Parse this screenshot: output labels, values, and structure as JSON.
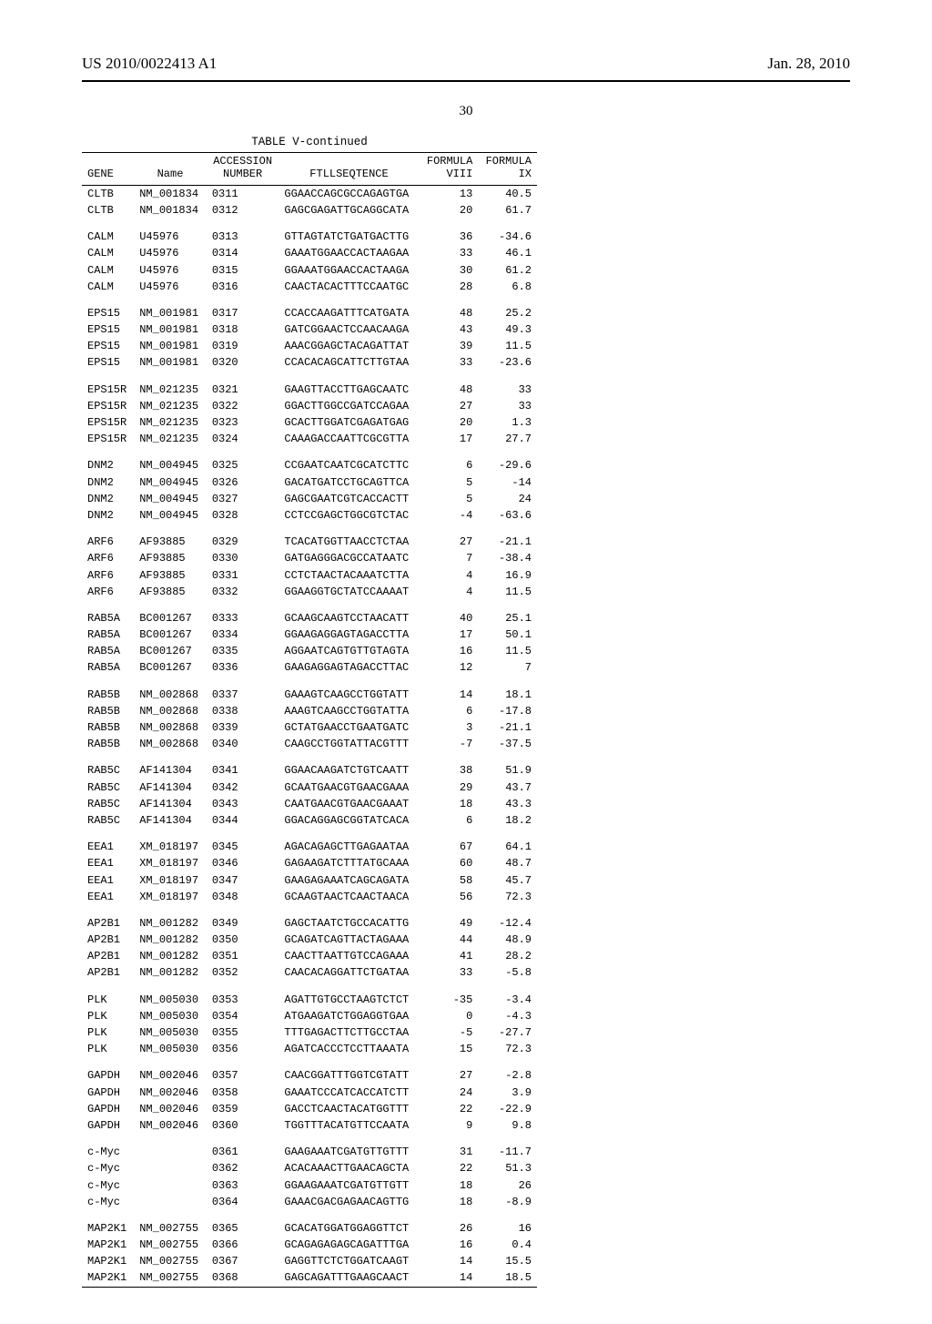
{
  "header": {
    "doc_number": "US 2010/0022413 A1",
    "date": "Jan. 28, 2010"
  },
  "page_number": "30",
  "table": {
    "title": "TABLE V-continued",
    "columns": {
      "gene": "GENE",
      "name": "Name",
      "accession": "ACCESSION\nNUMBER",
      "seq": "FTLLSEQTENCE",
      "f8": "FORMULA\nVIII",
      "f9": "FORMULA\nIX"
    },
    "groups": [
      [
        {
          "gene": "CLTB",
          "name": "NM_001834",
          "acc": "0311",
          "seq": "GGAACCAGCGCCAGAGTGA",
          "f8": "13",
          "f9": "40.5"
        },
        {
          "gene": "CLTB",
          "name": "NM_001834",
          "acc": "0312",
          "seq": "GAGCGAGATTGCAGGCATA",
          "f8": "20",
          "f9": "61.7"
        }
      ],
      [
        {
          "gene": "CALM",
          "name": "U45976",
          "acc": "0313",
          "seq": "GTTAGTATCTGATGACTTG",
          "f8": "36",
          "f9": "-34.6"
        },
        {
          "gene": "CALM",
          "name": "U45976",
          "acc": "0314",
          "seq": "GAAATGGAACCACTAAGAA",
          "f8": "33",
          "f9": "46.1"
        },
        {
          "gene": "CALM",
          "name": "U45976",
          "acc": "0315",
          "seq": "GGAAATGGAACCACTAAGA",
          "f8": "30",
          "f9": "61.2"
        },
        {
          "gene": "CALM",
          "name": "U45976",
          "acc": "0316",
          "seq": "CAACTACACTTTCCAATGC",
          "f8": "28",
          "f9": "6.8"
        }
      ],
      [
        {
          "gene": "EPS15",
          "name": "NM_001981",
          "acc": "0317",
          "seq": "CCACCAAGATTTCATGATA",
          "f8": "48",
          "f9": "25.2"
        },
        {
          "gene": "EPS15",
          "name": "NM_001981",
          "acc": "0318",
          "seq": "GATCGGAACTCCAACAAGA",
          "f8": "43",
          "f9": "49.3"
        },
        {
          "gene": "EPS15",
          "name": "NM_001981",
          "acc": "0319",
          "seq": "AAACGGAGCTACAGATTAT",
          "f8": "39",
          "f9": "11.5"
        },
        {
          "gene": "EPS15",
          "name": "NM_001981",
          "acc": "0320",
          "seq": "CCACACAGCATTCTTGTAA",
          "f8": "33",
          "f9": "-23.6"
        }
      ],
      [
        {
          "gene": "EPS15R",
          "name": "NM_021235",
          "acc": "0321",
          "seq": "GAAGTTACCTTGAGCAATC",
          "f8": "48",
          "f9": "33"
        },
        {
          "gene": "EPS15R",
          "name": "NM_021235",
          "acc": "0322",
          "seq": "GGACTTGGCCGATCCAGAA",
          "f8": "27",
          "f9": "33"
        },
        {
          "gene": "EPS15R",
          "name": "NM_021235",
          "acc": "0323",
          "seq": "GCACTTGGATCGAGATGAG",
          "f8": "20",
          "f9": "1.3"
        },
        {
          "gene": "EPS15R",
          "name": "NM_021235",
          "acc": "0324",
          "seq": "CAAAGACCAATTCGCGTTA",
          "f8": "17",
          "f9": "27.7"
        }
      ],
      [
        {
          "gene": "DNM2",
          "name": "NM_004945",
          "acc": "0325",
          "seq": "CCGAATCAATCGCATCTTC",
          "f8": "6",
          "f9": "-29.6"
        },
        {
          "gene": "DNM2",
          "name": "NM_004945",
          "acc": "0326",
          "seq": "GACATGATCCTGCAGTTCA",
          "f8": "5",
          "f9": "-14"
        },
        {
          "gene": "DNM2",
          "name": "NM_004945",
          "acc": "0327",
          "seq": "GAGCGAATCGTCACCACTT",
          "f8": "5",
          "f9": "24"
        },
        {
          "gene": "DNM2",
          "name": "NM_004945",
          "acc": "0328",
          "seq": "CCTCCGAGCTGGCGTCTAC",
          "f8": "-4",
          "f9": "-63.6"
        }
      ],
      [
        {
          "gene": "ARF6",
          "name": "AF93885",
          "acc": "0329",
          "seq": "TCACATGGTTAACCTCTAA",
          "f8": "27",
          "f9": "-21.1"
        },
        {
          "gene": "ARF6",
          "name": "AF93885",
          "acc": "0330",
          "seq": "GATGAGGGACGCCATAATC",
          "f8": "7",
          "f9": "-38.4"
        },
        {
          "gene": "ARF6",
          "name": "AF93885",
          "acc": "0331",
          "seq": "CCTCTAACTACAAATCTTA",
          "f8": "4",
          "f9": "16.9"
        },
        {
          "gene": "ARF6",
          "name": "AF93885",
          "acc": "0332",
          "seq": "GGAAGGTGCTATCCAAAAT",
          "f8": "4",
          "f9": "11.5"
        }
      ],
      [
        {
          "gene": "RAB5A",
          "name": "BC001267",
          "acc": "0333",
          "seq": "GCAAGCAAGTCCTAACATT",
          "f8": "40",
          "f9": "25.1"
        },
        {
          "gene": "RAB5A",
          "name": "BC001267",
          "acc": "0334",
          "seq": "GGAAGAGGAGTAGACCTTA",
          "f8": "17",
          "f9": "50.1"
        },
        {
          "gene": "RAB5A",
          "name": "BC001267",
          "acc": "0335",
          "seq": "AGGAATCAGTGTTGTAGTA",
          "f8": "16",
          "f9": "11.5"
        },
        {
          "gene": "RAB5A",
          "name": "BC001267",
          "acc": "0336",
          "seq": "GAAGAGGAGTAGACCTTAC",
          "f8": "12",
          "f9": "7"
        }
      ],
      [
        {
          "gene": "RAB5B",
          "name": "NM_002868",
          "acc": "0337",
          "seq": "GAAAGTCAAGCCTGGTATT",
          "f8": "14",
          "f9": "18.1"
        },
        {
          "gene": "RAB5B",
          "name": "NM_002868",
          "acc": "0338",
          "seq": "AAAGTCAAGCCTGGTATTA",
          "f8": "6",
          "f9": "-17.8"
        },
        {
          "gene": "RAB5B",
          "name": "NM_002868",
          "acc": "0339",
          "seq": "GCTATGAACCTGAATGATC",
          "f8": "3",
          "f9": "-21.1"
        },
        {
          "gene": "RAB5B",
          "name": "NM_002868",
          "acc": "0340",
          "seq": "CAAGCCTGGTATTACGTTT",
          "f8": "-7",
          "f9": "-37.5"
        }
      ],
      [
        {
          "gene": "RAB5C",
          "name": "AF141304",
          "acc": "0341",
          "seq": "GGAACAAGATCTGTCAATT",
          "f8": "38",
          "f9": "51.9"
        },
        {
          "gene": "RAB5C",
          "name": "AF141304",
          "acc": "0342",
          "seq": "GCAATGAACGTGAACGAAA",
          "f8": "29",
          "f9": "43.7"
        },
        {
          "gene": "RAB5C",
          "name": "AF141304",
          "acc": "0343",
          "seq": "CAATGAACGTGAACGAAAT",
          "f8": "18",
          "f9": "43.3"
        },
        {
          "gene": "RAB5C",
          "name": "AF141304",
          "acc": "0344",
          "seq": "GGACAGGAGCGGTATCACA",
          "f8": "6",
          "f9": "18.2"
        }
      ],
      [
        {
          "gene": "EEA1",
          "name": "XM_018197",
          "acc": "0345",
          "seq": "AGACAGAGCTTGAGAATAA",
          "f8": "67",
          "f9": "64.1"
        },
        {
          "gene": "EEA1",
          "name": "XM_018197",
          "acc": "0346",
          "seq": "GAGAAGATCTTTATGCAAA",
          "f8": "60",
          "f9": "48.7"
        },
        {
          "gene": "EEA1",
          "name": "XM_018197",
          "acc": "0347",
          "seq": "GAAGAGAAATCAGCAGATA",
          "f8": "58",
          "f9": "45.7"
        },
        {
          "gene": "EEA1",
          "name": "XM_018197",
          "acc": "0348",
          "seq": "GCAAGTAACTCAACTAACA",
          "f8": "56",
          "f9": "72.3"
        }
      ],
      [
        {
          "gene": "AP2B1",
          "name": "NM_001282",
          "acc": "0349",
          "seq": "GAGCTAATCTGCCACATTG",
          "f8": "49",
          "f9": "-12.4"
        },
        {
          "gene": "AP2B1",
          "name": "NM_001282",
          "acc": "0350",
          "seq": "GCAGATCAGTTACTAGAAA",
          "f8": "44",
          "f9": "48.9"
        },
        {
          "gene": "AP2B1",
          "name": "NM_001282",
          "acc": "0351",
          "seq": "CAACTTAATTGTCCAGAAA",
          "f8": "41",
          "f9": "28.2"
        },
        {
          "gene": "AP2B1",
          "name": "NM_001282",
          "acc": "0352",
          "seq": "CAACACAGGATTCTGATAA",
          "f8": "33",
          "f9": "-5.8"
        }
      ],
      [
        {
          "gene": "PLK",
          "name": "NM_005030",
          "acc": "0353",
          "seq": "AGATTGTGCCTAAGTCTCT",
          "f8": "-35",
          "f9": "-3.4"
        },
        {
          "gene": "PLK",
          "name": "NM_005030",
          "acc": "0354",
          "seq": "ATGAAGATCTGGAGGTGAA",
          "f8": "0",
          "f9": "-4.3"
        },
        {
          "gene": "PLK",
          "name": "NM_005030",
          "acc": "0355",
          "seq": "TTTGAGACTTCTTGCCTAA",
          "f8": "-5",
          "f9": "-27.7"
        },
        {
          "gene": "PLK",
          "name": "NM_005030",
          "acc": "0356",
          "seq": "AGATCACCCTCCTTAAATA",
          "f8": "15",
          "f9": "72.3"
        }
      ],
      [
        {
          "gene": "GAPDH",
          "name": "NM_002046",
          "acc": "0357",
          "seq": "CAACGGATTTGGTCGTATT",
          "f8": "27",
          "f9": "-2.8"
        },
        {
          "gene": "GAPDH",
          "name": "NM_002046",
          "acc": "0358",
          "seq": "GAAATCCCATCACCATCTT",
          "f8": "24",
          "f9": "3.9"
        },
        {
          "gene": "GAPDH",
          "name": "NM_002046",
          "acc": "0359",
          "seq": "GACCTCAACTACATGGTTT",
          "f8": "22",
          "f9": "-22.9"
        },
        {
          "gene": "GAPDH",
          "name": "NM_002046",
          "acc": "0360",
          "seq": "TGGTTTACATGTTCCAATA",
          "f8": "9",
          "f9": "9.8"
        }
      ],
      [
        {
          "gene": "c-Myc",
          "name": "",
          "acc": "0361",
          "seq": "GAAGAAATCGATGTTGTTT",
          "f8": "31",
          "f9": "-11.7"
        },
        {
          "gene": "c-Myc",
          "name": "",
          "acc": "0362",
          "seq": "ACACAAACTTGAACAGCTA",
          "f8": "22",
          "f9": "51.3"
        },
        {
          "gene": "c-Myc",
          "name": "",
          "acc": "0363",
          "seq": "GGAAGAAATCGATGTTGTT",
          "f8": "18",
          "f9": "26"
        },
        {
          "gene": "c-Myc",
          "name": "",
          "acc": "0364",
          "seq": "GAAACGACGAGAACAGTTG",
          "f8": "18",
          "f9": "-8.9"
        }
      ],
      [
        {
          "gene": "MAP2K1",
          "name": "NM_002755",
          "acc": "0365",
          "seq": "GCACATGGATGGAGGTTCT",
          "f8": "26",
          "f9": "16"
        },
        {
          "gene": "MAP2K1",
          "name": "NM_002755",
          "acc": "0366",
          "seq": "GCAGAGAGAGCAGATTTGA",
          "f8": "16",
          "f9": "0.4"
        },
        {
          "gene": "MAP2K1",
          "name": "NM_002755",
          "acc": "0367",
          "seq": "GAGGTTCTCTGGATCAAGT",
          "f8": "14",
          "f9": "15.5"
        },
        {
          "gene": "MAP2K1",
          "name": "NM_002755",
          "acc": "0368",
          "seq": "GAGCAGATTTGAAGCAACT",
          "f8": "14",
          "f9": "18.5"
        }
      ]
    ]
  }
}
